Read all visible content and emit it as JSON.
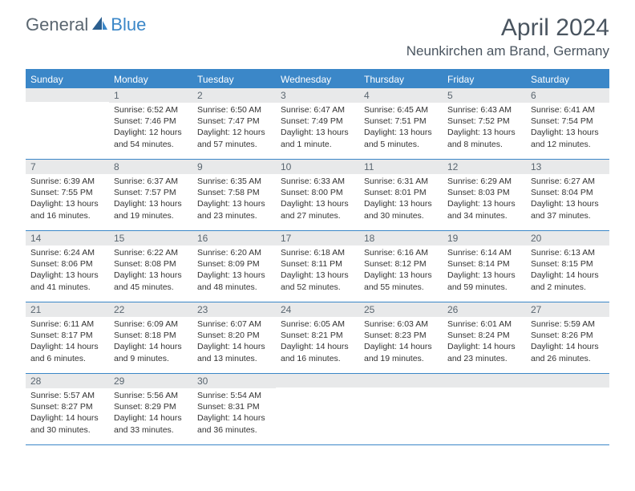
{
  "logo": {
    "part1": "General",
    "part2": "Blue"
  },
  "title": "April 2024",
  "location": "Neunkirchen am Brand, Germany",
  "colors": {
    "header_blue": "#3b87c8",
    "gray_bg": "#e8e9ea",
    "text_dark": "#333333",
    "text_gray": "#5a6670"
  },
  "day_headers": [
    "Sunday",
    "Monday",
    "Tuesday",
    "Wednesday",
    "Thursday",
    "Friday",
    "Saturday"
  ],
  "weeks": [
    [
      {
        "day": "",
        "lines": []
      },
      {
        "day": "1",
        "lines": [
          "Sunrise: 6:52 AM",
          "Sunset: 7:46 PM",
          "Daylight: 12 hours",
          "and 54 minutes."
        ]
      },
      {
        "day": "2",
        "lines": [
          "Sunrise: 6:50 AM",
          "Sunset: 7:47 PM",
          "Daylight: 12 hours",
          "and 57 minutes."
        ]
      },
      {
        "day": "3",
        "lines": [
          "Sunrise: 6:47 AM",
          "Sunset: 7:49 PM",
          "Daylight: 13 hours",
          "and 1 minute."
        ]
      },
      {
        "day": "4",
        "lines": [
          "Sunrise: 6:45 AM",
          "Sunset: 7:51 PM",
          "Daylight: 13 hours",
          "and 5 minutes."
        ]
      },
      {
        "day": "5",
        "lines": [
          "Sunrise: 6:43 AM",
          "Sunset: 7:52 PM",
          "Daylight: 13 hours",
          "and 8 minutes."
        ]
      },
      {
        "day": "6",
        "lines": [
          "Sunrise: 6:41 AM",
          "Sunset: 7:54 PM",
          "Daylight: 13 hours",
          "and 12 minutes."
        ]
      }
    ],
    [
      {
        "day": "7",
        "lines": [
          "Sunrise: 6:39 AM",
          "Sunset: 7:55 PM",
          "Daylight: 13 hours",
          "and 16 minutes."
        ]
      },
      {
        "day": "8",
        "lines": [
          "Sunrise: 6:37 AM",
          "Sunset: 7:57 PM",
          "Daylight: 13 hours",
          "and 19 minutes."
        ]
      },
      {
        "day": "9",
        "lines": [
          "Sunrise: 6:35 AM",
          "Sunset: 7:58 PM",
          "Daylight: 13 hours",
          "and 23 minutes."
        ]
      },
      {
        "day": "10",
        "lines": [
          "Sunrise: 6:33 AM",
          "Sunset: 8:00 PM",
          "Daylight: 13 hours",
          "and 27 minutes."
        ]
      },
      {
        "day": "11",
        "lines": [
          "Sunrise: 6:31 AM",
          "Sunset: 8:01 PM",
          "Daylight: 13 hours",
          "and 30 minutes."
        ]
      },
      {
        "day": "12",
        "lines": [
          "Sunrise: 6:29 AM",
          "Sunset: 8:03 PM",
          "Daylight: 13 hours",
          "and 34 minutes."
        ]
      },
      {
        "day": "13",
        "lines": [
          "Sunrise: 6:27 AM",
          "Sunset: 8:04 PM",
          "Daylight: 13 hours",
          "and 37 minutes."
        ]
      }
    ],
    [
      {
        "day": "14",
        "lines": [
          "Sunrise: 6:24 AM",
          "Sunset: 8:06 PM",
          "Daylight: 13 hours",
          "and 41 minutes."
        ]
      },
      {
        "day": "15",
        "lines": [
          "Sunrise: 6:22 AM",
          "Sunset: 8:08 PM",
          "Daylight: 13 hours",
          "and 45 minutes."
        ]
      },
      {
        "day": "16",
        "lines": [
          "Sunrise: 6:20 AM",
          "Sunset: 8:09 PM",
          "Daylight: 13 hours",
          "and 48 minutes."
        ]
      },
      {
        "day": "17",
        "lines": [
          "Sunrise: 6:18 AM",
          "Sunset: 8:11 PM",
          "Daylight: 13 hours",
          "and 52 minutes."
        ]
      },
      {
        "day": "18",
        "lines": [
          "Sunrise: 6:16 AM",
          "Sunset: 8:12 PM",
          "Daylight: 13 hours",
          "and 55 minutes."
        ]
      },
      {
        "day": "19",
        "lines": [
          "Sunrise: 6:14 AM",
          "Sunset: 8:14 PM",
          "Daylight: 13 hours",
          "and 59 minutes."
        ]
      },
      {
        "day": "20",
        "lines": [
          "Sunrise: 6:13 AM",
          "Sunset: 8:15 PM",
          "Daylight: 14 hours",
          "and 2 minutes."
        ]
      }
    ],
    [
      {
        "day": "21",
        "lines": [
          "Sunrise: 6:11 AM",
          "Sunset: 8:17 PM",
          "Daylight: 14 hours",
          "and 6 minutes."
        ]
      },
      {
        "day": "22",
        "lines": [
          "Sunrise: 6:09 AM",
          "Sunset: 8:18 PM",
          "Daylight: 14 hours",
          "and 9 minutes."
        ]
      },
      {
        "day": "23",
        "lines": [
          "Sunrise: 6:07 AM",
          "Sunset: 8:20 PM",
          "Daylight: 14 hours",
          "and 13 minutes."
        ]
      },
      {
        "day": "24",
        "lines": [
          "Sunrise: 6:05 AM",
          "Sunset: 8:21 PM",
          "Daylight: 14 hours",
          "and 16 minutes."
        ]
      },
      {
        "day": "25",
        "lines": [
          "Sunrise: 6:03 AM",
          "Sunset: 8:23 PM",
          "Daylight: 14 hours",
          "and 19 minutes."
        ]
      },
      {
        "day": "26",
        "lines": [
          "Sunrise: 6:01 AM",
          "Sunset: 8:24 PM",
          "Daylight: 14 hours",
          "and 23 minutes."
        ]
      },
      {
        "day": "27",
        "lines": [
          "Sunrise: 5:59 AM",
          "Sunset: 8:26 PM",
          "Daylight: 14 hours",
          "and 26 minutes."
        ]
      }
    ],
    [
      {
        "day": "28",
        "lines": [
          "Sunrise: 5:57 AM",
          "Sunset: 8:27 PM",
          "Daylight: 14 hours",
          "and 30 minutes."
        ]
      },
      {
        "day": "29",
        "lines": [
          "Sunrise: 5:56 AM",
          "Sunset: 8:29 PM",
          "Daylight: 14 hours",
          "and 33 minutes."
        ]
      },
      {
        "day": "30",
        "lines": [
          "Sunrise: 5:54 AM",
          "Sunset: 8:31 PM",
          "Daylight: 14 hours",
          "and 36 minutes."
        ]
      },
      {
        "day": "",
        "lines": []
      },
      {
        "day": "",
        "lines": []
      },
      {
        "day": "",
        "lines": []
      },
      {
        "day": "",
        "lines": []
      }
    ]
  ]
}
